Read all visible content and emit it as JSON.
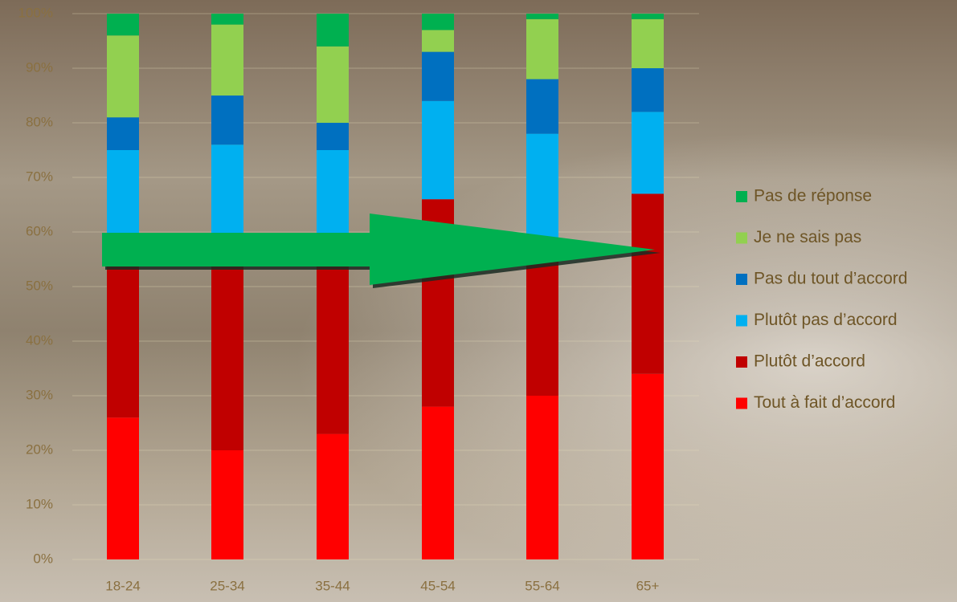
{
  "chart_data": {
    "type": "stacked_bar",
    "categories": [
      "18-24",
      "25-34",
      "35-44",
      "45-54",
      "55-64",
      "65+"
    ],
    "series": [
      {
        "name": "Tout à fait d’accord",
        "color": "#ff0000",
        "values": [
          26,
          20,
          23,
          28,
          30,
          34
        ]
      },
      {
        "name": "Plutôt d’accord",
        "color": "#c00000",
        "values": [
          32,
          37,
          32,
          38,
          29,
          33
        ]
      },
      {
        "name": "Plutôt pas d’accord",
        "color": "#00b0f0",
        "values": [
          17,
          19,
          20,
          18,
          19,
          15
        ]
      },
      {
        "name": "Pas du tout d’accord",
        "color": "#0070c0",
        "values": [
          6,
          9,
          5,
          9,
          10,
          8
        ]
      },
      {
        "name": "Je ne sais pas",
        "color": "#92d050",
        "values": [
          15,
          13,
          14,
          4,
          11,
          9
        ]
      },
      {
        "name": "Pas de réponse",
        "color": "#00b050",
        "values": [
          4,
          2,
          6,
          3,
          1,
          1
        ]
      }
    ],
    "ylim": [
      0,
      100
    ],
    "yticks": [
      {
        "value": 0,
        "label": "0%"
      },
      {
        "value": 10,
        "label": "10%"
      },
      {
        "value": 20,
        "label": "20%"
      },
      {
        "value": 30,
        "label": "30%"
      },
      {
        "value": 40,
        "label": "40%"
      },
      {
        "value": 50,
        "label": "50%"
      },
      {
        "value": 60,
        "label": "60%"
      },
      {
        "value": 70,
        "label": "70%"
      },
      {
        "value": 80,
        "label": "80%"
      },
      {
        "value": 90,
        "label": "90%"
      },
      {
        "value": 100,
        "label": "100%"
      }
    ],
    "grid": true
  }
}
